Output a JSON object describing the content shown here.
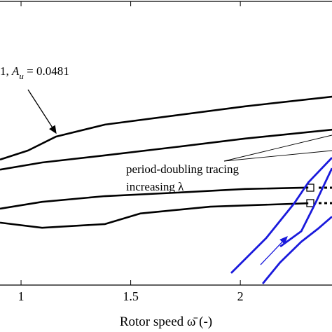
{
  "chart_data": {
    "type": "line",
    "xlabel": "Rotor speed ω̄ (-)",
    "annotations": [
      "1, ",
      "A",
      "u",
      " = 0.0481",
      "period-doubling tracing",
      "increasing λ"
    ],
    "xlim": [
      0.904,
      2.418
    ],
    "ylim": [
      0,
      1
    ],
    "xticks": [
      1,
      1.5,
      2
    ],
    "series": [
      {
        "color": "#000000",
        "x": [
          0.904,
          1.032,
          1.16,
          1.383,
          1.703,
          2.022,
          2.419
        ],
        "values": [
          0.44,
          0.472,
          0.521,
          0.563,
          0.595,
          0.627,
          0.661
        ]
      },
      {
        "color": "#000000",
        "x": [
          0.904,
          1.096,
          1.383,
          1.703,
          2.022,
          2.419
        ],
        "values": [
          0.405,
          0.43,
          0.455,
          0.484,
          0.514,
          0.545
        ]
      },
      {
        "color": "#000000",
        "x": [
          0.904,
          1.096,
          1.383,
          1.703,
          2.022,
          2.31
        ],
        "values": [
          0.268,
          0.292,
          0.312,
          0.324,
          0.337,
          0.342
        ]
      },
      {
        "color": "#000000",
        "x": [
          0.904,
          1.096,
          1.383,
          1.543,
          1.863,
          2.31
        ],
        "values": [
          0.219,
          0.201,
          0.214,
          0.251,
          0.275,
          0.287
        ]
      },
      {
        "color": "#1a1adc",
        "x": [
          1.958,
          2.118,
          2.246,
          2.31,
          2.418
        ],
        "values": [
          0.042,
          0.165,
          0.287,
          0.36,
          0.447
        ]
      },
      {
        "color": "#1a1adc",
        "x": [
          2.102,
          2.182,
          2.278,
          2.358,
          2.418
        ],
        "values": [
          0.005,
          0.08,
          0.152,
          0.2,
          0.24
        ]
      },
      {
        "color": "#1a1adc",
        "x": [
          2.182,
          2.278,
          2.342,
          2.418
        ],
        "values": [
          0.135,
          0.189,
          0.287,
          0.41
        ]
      }
    ]
  }
}
